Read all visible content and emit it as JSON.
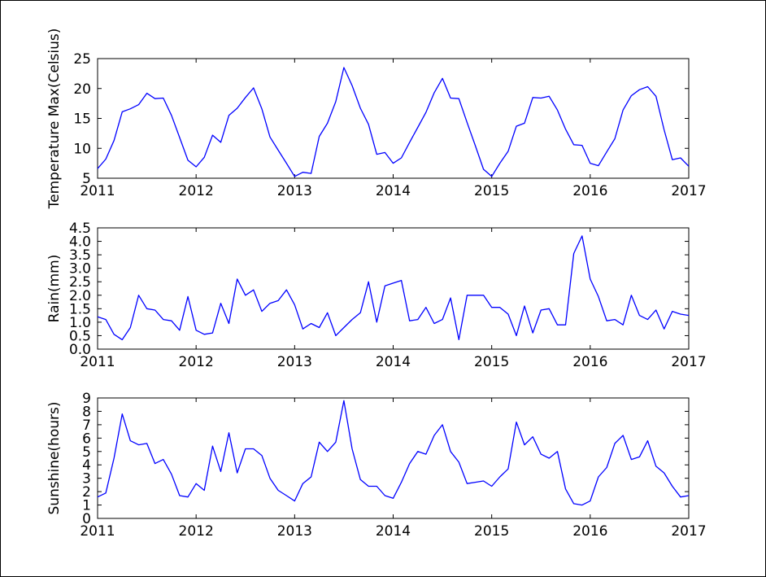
{
  "chart_data": [
    {
      "type": "line",
      "ylabel": "Temperature Max(Celsius)",
      "xlabel": "",
      "xlim": [
        2011,
        2017
      ],
      "ylim": [
        5,
        25
      ],
      "xticks": [
        "2011",
        "2012",
        "2013",
        "2014",
        "2015",
        "2016",
        "2017"
      ],
      "yticks": [
        "5",
        "10",
        "15",
        "20",
        "25"
      ],
      "grid": false,
      "line_color": "#0000ff",
      "series": [
        {
          "x": [
            2011.0,
            2011.083,
            2011.167,
            2011.25,
            2011.333,
            2011.417,
            2011.5,
            2011.583,
            2011.667,
            2011.75,
            2011.833,
            2011.917,
            2012.0,
            2012.083,
            2012.167,
            2012.25,
            2012.333,
            2012.417,
            2012.5,
            2012.583,
            2012.667,
            2012.75,
            2012.833,
            2012.917,
            2013.0,
            2013.083,
            2013.167,
            2013.25,
            2013.333,
            2013.417,
            2013.5,
            2013.583,
            2013.667,
            2013.75,
            2013.833,
            2013.917,
            2014.0,
            2014.083,
            2014.167,
            2014.25,
            2014.333,
            2014.417,
            2014.5,
            2014.583,
            2014.667,
            2014.75,
            2014.833,
            2014.917,
            2015.0,
            2015.083,
            2015.167,
            2015.25,
            2015.333,
            2015.417,
            2015.5,
            2015.583,
            2015.667,
            2015.75,
            2015.833,
            2015.917,
            2016.0,
            2016.083,
            2016.167,
            2016.25,
            2016.333,
            2016.417,
            2016.5,
            2016.583,
            2016.667,
            2016.75,
            2016.833,
            2016.917,
            2017.0
          ],
          "y": [
            6.6,
            8.2,
            11.3,
            16.1,
            16.6,
            17.3,
            19.2,
            18.3,
            18.4,
            15.5,
            11.8,
            8.0,
            6.9,
            8.5,
            12.2,
            11.0,
            15.5,
            16.7,
            18.5,
            20.1,
            16.6,
            11.9,
            9.7,
            7.5,
            5.3,
            6.0,
            5.8,
            12.0,
            14.2,
            17.8,
            23.5,
            20.5,
            16.7,
            14.0,
            9.0,
            9.3,
            7.5,
            8.4,
            11.0,
            13.5,
            16.0,
            19.3,
            21.7,
            18.4,
            18.3,
            14.3,
            10.5,
            6.5,
            5.3,
            7.5,
            9.5,
            13.7,
            14.2,
            18.5,
            18.4,
            18.7,
            16.4,
            13.2,
            10.6,
            10.5,
            7.5,
            7.1,
            9.4,
            11.6,
            16.4,
            18.8,
            19.8,
            20.3,
            18.7,
            13.1,
            8.1,
            8.4,
            7.0
          ]
        }
      ]
    },
    {
      "type": "line",
      "ylabel": "Rain(mm)",
      "xlabel": "",
      "xlim": [
        2011,
        2017
      ],
      "ylim": [
        0,
        4.5
      ],
      "xticks": [
        "2011",
        "2012",
        "2013",
        "2014",
        "2015",
        "2016",
        "2017"
      ],
      "yticks": [
        "0.0",
        "0.5",
        "1.0",
        "1.5",
        "2.0",
        "2.5",
        "3.0",
        "3.5",
        "4.0",
        "4.5"
      ],
      "grid": false,
      "line_color": "#0000ff",
      "series": [
        {
          "x": [
            2011.0,
            2011.083,
            2011.167,
            2011.25,
            2011.333,
            2011.417,
            2011.5,
            2011.583,
            2011.667,
            2011.75,
            2011.833,
            2011.917,
            2012.0,
            2012.083,
            2012.167,
            2012.25,
            2012.333,
            2012.417,
            2012.5,
            2012.583,
            2012.667,
            2012.75,
            2012.833,
            2012.917,
            2013.0,
            2013.083,
            2013.167,
            2013.25,
            2013.333,
            2013.417,
            2013.5,
            2013.583,
            2013.667,
            2013.75,
            2013.833,
            2013.917,
            2014.0,
            2014.083,
            2014.167,
            2014.25,
            2014.333,
            2014.417,
            2014.5,
            2014.583,
            2014.667,
            2014.75,
            2014.833,
            2014.917,
            2015.0,
            2015.083,
            2015.167,
            2015.25,
            2015.333,
            2015.417,
            2015.5,
            2015.583,
            2015.667,
            2015.75,
            2015.833,
            2015.917,
            2016.0,
            2016.083,
            2016.167,
            2016.25,
            2016.333,
            2016.417,
            2016.5,
            2016.583,
            2016.667,
            2016.75,
            2016.833,
            2016.917,
            2017.0
          ],
          "y": [
            1.2,
            1.1,
            0.55,
            0.35,
            0.8,
            2.0,
            1.5,
            1.45,
            1.1,
            1.05,
            0.7,
            1.95,
            0.7,
            0.55,
            0.6,
            1.7,
            0.95,
            2.6,
            2.0,
            2.2,
            1.4,
            1.7,
            1.8,
            2.2,
            1.65,
            0.75,
            0.95,
            0.8,
            1.35,
            0.5,
            0.8,
            1.1,
            1.35,
            2.5,
            1.0,
            2.35,
            2.45,
            2.55,
            1.05,
            1.1,
            1.55,
            0.95,
            1.1,
            1.9,
            0.35,
            2.0,
            2.0,
            2.0,
            1.55,
            1.55,
            1.3,
            0.5,
            1.6,
            0.6,
            1.45,
            1.5,
            0.9,
            0.9,
            3.55,
            4.2,
            2.6,
            1.95,
            1.05,
            1.1,
            0.9,
            2.0,
            1.25,
            1.1,
            1.45,
            0.75,
            1.4,
            1.3,
            1.25
          ]
        }
      ]
    },
    {
      "type": "line",
      "ylabel": "Sunshine(hours)",
      "xlabel": "",
      "xlim": [
        2011,
        2017
      ],
      "ylim": [
        0,
        9
      ],
      "xticks": [
        "2011",
        "2012",
        "2013",
        "2014",
        "2015",
        "2016",
        "2017"
      ],
      "yticks": [
        "0",
        "1",
        "2",
        "3",
        "4",
        "5",
        "6",
        "7",
        "8",
        "9"
      ],
      "grid": false,
      "line_color": "#0000ff",
      "series": [
        {
          "x": [
            2011.0,
            2011.083,
            2011.167,
            2011.25,
            2011.333,
            2011.417,
            2011.5,
            2011.583,
            2011.667,
            2011.75,
            2011.833,
            2011.917,
            2012.0,
            2012.083,
            2012.167,
            2012.25,
            2012.333,
            2012.417,
            2012.5,
            2012.583,
            2012.667,
            2012.75,
            2012.833,
            2012.917,
            2013.0,
            2013.083,
            2013.167,
            2013.25,
            2013.333,
            2013.417,
            2013.5,
            2013.583,
            2013.667,
            2013.75,
            2013.833,
            2013.917,
            2014.0,
            2014.083,
            2014.167,
            2014.25,
            2014.333,
            2014.417,
            2014.5,
            2014.583,
            2014.667,
            2014.75,
            2014.833,
            2014.917,
            2015.0,
            2015.083,
            2015.167,
            2015.25,
            2015.333,
            2015.417,
            2015.5,
            2015.583,
            2015.667,
            2015.75,
            2015.833,
            2015.917,
            2016.0,
            2016.083,
            2016.167,
            2016.25,
            2016.333,
            2016.417,
            2016.5,
            2016.583,
            2016.667,
            2016.75,
            2016.833,
            2016.917,
            2017.0
          ],
          "y": [
            1.6,
            1.9,
            4.5,
            7.8,
            5.8,
            5.5,
            5.6,
            4.1,
            4.4,
            3.3,
            1.7,
            1.6,
            2.6,
            2.1,
            5.4,
            3.5,
            6.4,
            3.4,
            5.2,
            5.2,
            4.7,
            3.0,
            2.1,
            1.7,
            1.3,
            2.6,
            3.1,
            5.7,
            5.0,
            5.7,
            8.8,
            5.2,
            2.9,
            2.4,
            2.4,
            1.7,
            1.5,
            2.7,
            4.1,
            5.0,
            4.8,
            6.2,
            7.0,
            5.0,
            4.2,
            2.6,
            2.7,
            2.8,
            2.4,
            3.1,
            3.7,
            7.2,
            5.5,
            6.1,
            4.8,
            4.5,
            5.0,
            2.2,
            1.1,
            1.0,
            1.3,
            3.1,
            3.8,
            5.6,
            6.2,
            4.4,
            4.6,
            5.8,
            3.9,
            3.4,
            2.4,
            1.6,
            1.7
          ]
        }
      ]
    }
  ]
}
